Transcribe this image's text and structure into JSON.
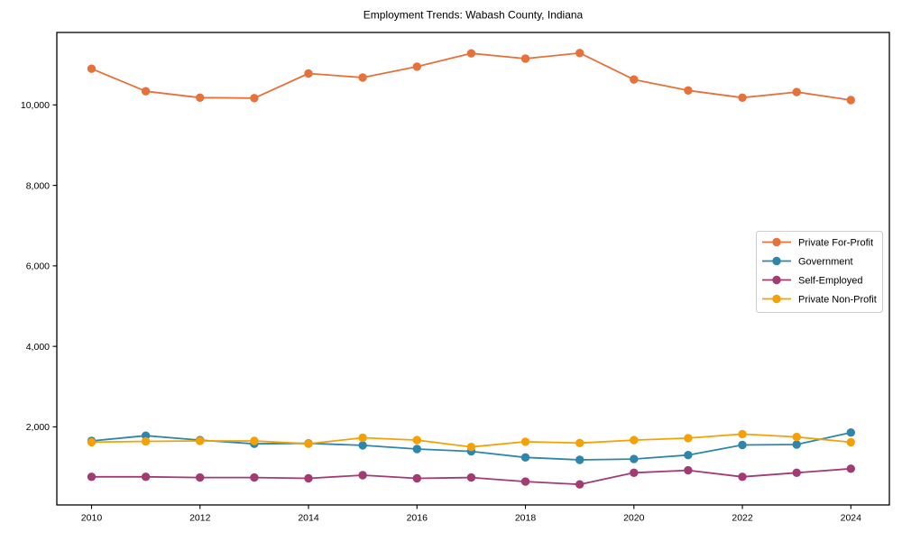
{
  "figure": {
    "title": "Employment Trends: Wabash County, Indiana",
    "background_color": "#ffffff",
    "spine_color": "#000000"
  },
  "chart_data": {
    "type": "line",
    "title": "Employment Trends: Wabash County, Indiana",
    "xlabel": "",
    "ylabel": "",
    "x": [
      2010,
      2011,
      2012,
      2013,
      2014,
      2015,
      2016,
      2017,
      2018,
      2019,
      2020,
      2021,
      2022,
      2023,
      2024
    ],
    "series": [
      {
        "name": "Private For-Profit",
        "color": "#E6713B",
        "values": [
          10900,
          10340,
          10180,
          10170,
          10780,
          10680,
          10950,
          11280,
          11150,
          11290,
          10630,
          10360,
          10180,
          10320,
          10120
        ]
      },
      {
        "name": "Government",
        "color": "#2E86AB",
        "values": [
          1650,
          1780,
          1670,
          1580,
          1590,
          1540,
          1450,
          1390,
          1240,
          1180,
          1200,
          1300,
          1550,
          1560,
          1860
        ]
      },
      {
        "name": "Self-Employed",
        "color": "#A23B72",
        "values": [
          760,
          760,
          740,
          740,
          720,
          800,
          720,
          740,
          640,
          570,
          860,
          920,
          760,
          860,
          960
        ]
      },
      {
        "name": "Private Non-Profit",
        "color": "#F5A105",
        "values": [
          1620,
          1640,
          1650,
          1650,
          1580,
          1730,
          1670,
          1500,
          1630,
          1600,
          1670,
          1720,
          1820,
          1750,
          1620
        ]
      }
    ],
    "xticks": [
      2010,
      2012,
      2014,
      2016,
      2018,
      2020,
      2022,
      2024
    ],
    "yticks": [
      2000,
      4000,
      6000,
      8000,
      10000
    ],
    "ytick_labels": [
      "2,000",
      "4,000",
      "6,000",
      "8,000",
      "10,000"
    ],
    "xlim": [
      2009.36,
      2024.71
    ],
    "ylim": [
      60,
      11800
    ],
    "grid": false,
    "legend_position": "center right",
    "marker": "circle"
  }
}
